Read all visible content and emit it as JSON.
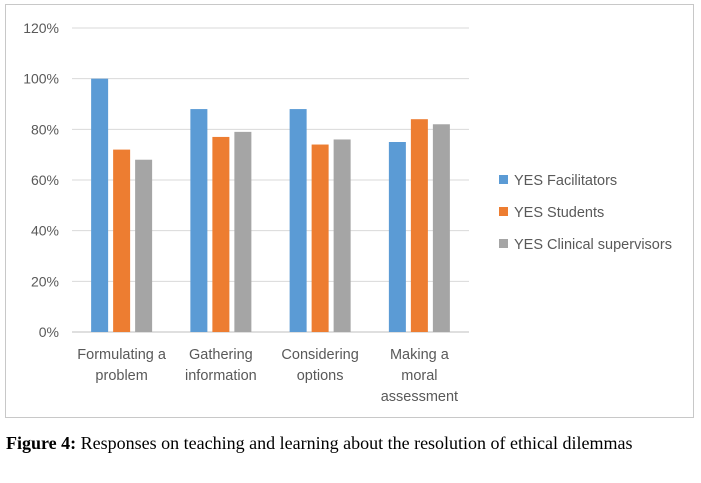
{
  "chart_data": {
    "type": "bar",
    "categories": [
      [
        "Formulating a",
        "problem"
      ],
      [
        "Gathering",
        "information"
      ],
      [
        "Considering",
        "options"
      ],
      [
        "Making a",
        "moral",
        "assessment"
      ]
    ],
    "series": [
      {
        "name": "YES Facilitators",
        "values": [
          100,
          88,
          88,
          75
        ],
        "color": "#5B9BD5"
      },
      {
        "name": "YES Students",
        "values": [
          72,
          77,
          74,
          84
        ],
        "color": "#ED7D31"
      },
      {
        "name": "YES Clinical supervisors",
        "values": [
          68,
          79,
          76,
          82
        ],
        "color": "#A5A5A5"
      }
    ],
    "ylim": [
      0,
      120
    ],
    "yticks": [
      "0%",
      "20%",
      "40%",
      "60%",
      "80%",
      "100%",
      "120%"
    ],
    "grid": true,
    "legend": "right"
  },
  "caption": {
    "label": "Figure 4:",
    "text": " Responses on teaching and learning about the resolution of ethical dilemmas"
  }
}
